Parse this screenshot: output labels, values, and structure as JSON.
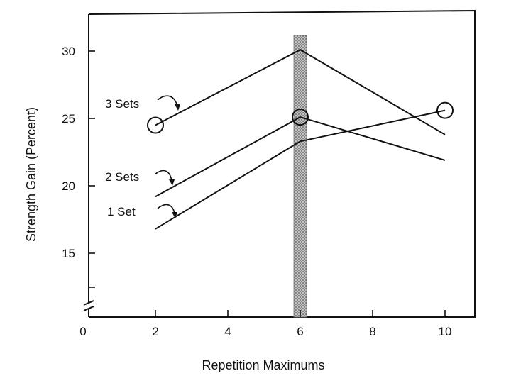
{
  "chart_data": {
    "type": "line",
    "xlabel": "Repetition Maximums",
    "ylabel": "Strength Gain  (Percent)",
    "xlim": [
      0,
      11
    ],
    "ylim": [
      10,
      32.5
    ],
    "axis_break": true,
    "x_ticks": [
      0,
      2,
      4,
      6,
      8,
      10
    ],
    "y_ticks": [
      15,
      20,
      25,
      30
    ],
    "highlight_x": 6,
    "series": [
      {
        "name": "3 Sets",
        "x": [
          2,
          6,
          10
        ],
        "y": [
          24.5,
          30.1,
          23.8
        ]
      },
      {
        "name": "2 Sets",
        "x": [
          2,
          6,
          10
        ],
        "y": [
          19.2,
          25.1,
          21.9
        ]
      },
      {
        "name": "1 Set",
        "x": [
          2,
          6,
          10
        ],
        "y": [
          16.8,
          23.3,
          25.6
        ]
      }
    ],
    "circled_points": [
      {
        "series": "3 Sets",
        "x": 2,
        "y": 24.5
      },
      {
        "series": "2 Sets",
        "x": 6,
        "y": 25.1
      },
      {
        "series": "1 Set",
        "x": 10,
        "y": 25.6
      }
    ]
  }
}
